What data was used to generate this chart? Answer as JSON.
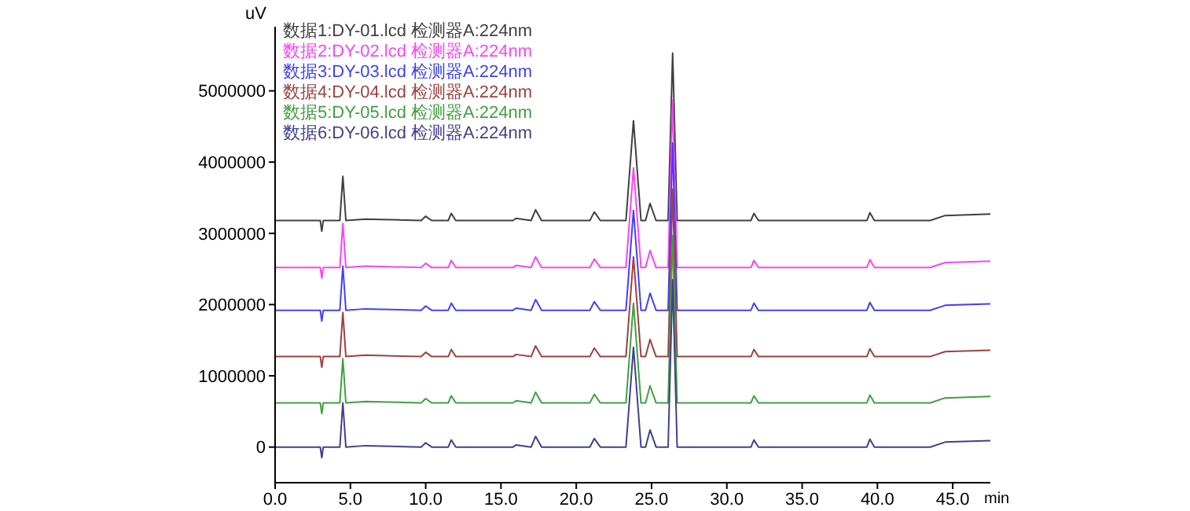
{
  "chart_data": {
    "type": "line",
    "xlabel": "min",
    "ylabel": "uV",
    "x": [
      0,
      3.0,
      3.1,
      3.2,
      4.3,
      4.5,
      4.7,
      6.0,
      9.7,
      10.0,
      10.4,
      11.5,
      11.7,
      12.0,
      15.8,
      16.0,
      17.0,
      17.3,
      17.7,
      20.9,
      21.2,
      21.6,
      23.3,
      23.8,
      24.3,
      24.6,
      24.9,
      25.3,
      26.1,
      26.4,
      26.7,
      31.6,
      31.8,
      32.1,
      39.3,
      39.5,
      39.8,
      43.5,
      44.5,
      47.5
    ],
    "xlim": [
      0,
      47.5
    ],
    "xticks": [
      {
        "value": 0,
        "label": "0.0"
      },
      {
        "value": 5,
        "label": "5.0"
      },
      {
        "value": 10,
        "label": "10.0"
      },
      {
        "value": 15,
        "label": "15.0"
      },
      {
        "value": 20,
        "label": "20.0"
      },
      {
        "value": 25,
        "label": "25.0"
      },
      {
        "value": 30,
        "label": "30.0"
      },
      {
        "value": 35,
        "label": "35.0"
      },
      {
        "value": 40,
        "label": "40.0"
      },
      {
        "value": 45,
        "label": "45.0"
      }
    ],
    "ylim": [
      -500000,
      5900000
    ],
    "yticks": [
      0,
      1000000,
      2000000,
      3000000,
      4000000,
      5000000
    ],
    "grid": false,
    "legend": "top left",
    "marker": "none",
    "line_style": "solid",
    "series": [
      {
        "name": "数据1:DY-01.lcd 检测器A:224nm",
        "color": "#404040",
        "values": [
          3180000,
          3180000,
          3030000,
          3180000,
          3180000,
          3800000,
          3180000,
          3200000,
          3180000,
          3240000,
          3180000,
          3180000,
          3280000,
          3180000,
          3180000,
          3210000,
          3180000,
          3330000,
          3180000,
          3180000,
          3300000,
          3180000,
          3180000,
          4580000,
          3180000,
          3180000,
          3420000,
          3180000,
          3180000,
          5530000,
          3180000,
          3180000,
          3280000,
          3180000,
          3180000,
          3290000,
          3180000,
          3180000,
          3250000,
          3270000
        ]
      },
      {
        "name": "数据2:DY-02.lcd 检测器A:224nm",
        "color": "#ff40ff",
        "values": [
          2520000,
          2520000,
          2370000,
          2520000,
          2520000,
          3140000,
          2520000,
          2540000,
          2520000,
          2580000,
          2520000,
          2520000,
          2620000,
          2520000,
          2520000,
          2550000,
          2520000,
          2670000,
          2520000,
          2520000,
          2640000,
          2520000,
          2520000,
          3920000,
          2520000,
          2520000,
          2760000,
          2520000,
          2520000,
          4870000,
          2520000,
          2520000,
          2620000,
          2520000,
          2520000,
          2630000,
          2520000,
          2520000,
          2590000,
          2610000
        ]
      },
      {
        "name": "数据3:DY-03.lcd 检测器A:224nm",
        "color": "#4040ff",
        "values": [
          1920000,
          1920000,
          1770000,
          1920000,
          1920000,
          2540000,
          1920000,
          1940000,
          1920000,
          1980000,
          1920000,
          1920000,
          2020000,
          1920000,
          1920000,
          1950000,
          1920000,
          2070000,
          1920000,
          1920000,
          2040000,
          1920000,
          1920000,
          3320000,
          1920000,
          1920000,
          2160000,
          1920000,
          1920000,
          4270000,
          1920000,
          1920000,
          2020000,
          1920000,
          1920000,
          2030000,
          1920000,
          1920000,
          1990000,
          2010000
        ]
      },
      {
        "name": "数据4:DY-04.lcd 检测器A:224nm",
        "color": "#a04040",
        "values": [
          1270000,
          1270000,
          1120000,
          1270000,
          1270000,
          1890000,
          1270000,
          1290000,
          1270000,
          1330000,
          1270000,
          1270000,
          1370000,
          1270000,
          1270000,
          1300000,
          1270000,
          1420000,
          1270000,
          1270000,
          1390000,
          1270000,
          1270000,
          2670000,
          1270000,
          1270000,
          1510000,
          1270000,
          1270000,
          3620000,
          1270000,
          1270000,
          1370000,
          1270000,
          1270000,
          1380000,
          1270000,
          1270000,
          1340000,
          1360000
        ]
      },
      {
        "name": "数据5:DY-05.lcd 检测器A:224nm",
        "color": "#40a040",
        "values": [
          620000,
          620000,
          470000,
          620000,
          620000,
          1240000,
          620000,
          640000,
          620000,
          680000,
          620000,
          620000,
          720000,
          620000,
          620000,
          650000,
          620000,
          770000,
          620000,
          620000,
          740000,
          620000,
          620000,
          2020000,
          620000,
          620000,
          860000,
          620000,
          620000,
          2970000,
          620000,
          620000,
          720000,
          620000,
          620000,
          730000,
          620000,
          620000,
          690000,
          710000
        ]
      },
      {
        "name": "数据6:DY-06.lcd 检测器A:224nm",
        "color": "#404090",
        "values": [
          0,
          0,
          -150000,
          0,
          0,
          620000,
          0,
          20000,
          0,
          60000,
          0,
          0,
          100000,
          0,
          0,
          30000,
          0,
          150000,
          0,
          0,
          120000,
          0,
          0,
          1400000,
          0,
          0,
          240000,
          0,
          0,
          2350000,
          0,
          0,
          100000,
          0,
          0,
          110000,
          0,
          0,
          70000,
          90000
        ]
      }
    ]
  }
}
